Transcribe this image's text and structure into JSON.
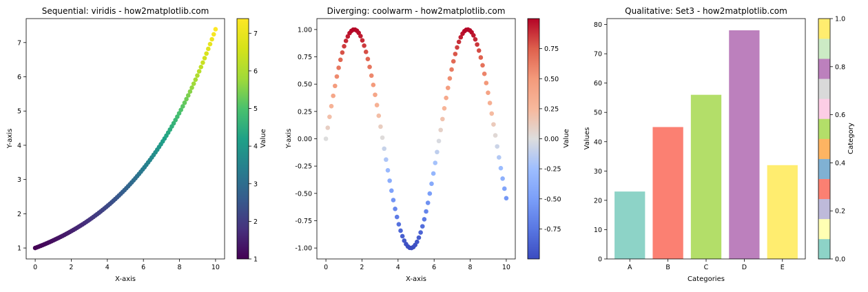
{
  "chart_data": [
    {
      "type": "scatter",
      "title": "Sequential: viridis - how2matplotlib.com",
      "xlabel": "X-axis",
      "ylabel": "Y-axis",
      "colormap": "viridis",
      "function": "exp(x/5)",
      "x_range": [
        0,
        10
      ],
      "n_points": 100,
      "xlim": [
        -0.5,
        10.5
      ],
      "ylim": [
        0.68,
        7.7
      ],
      "xticks": [
        0,
        2,
        4,
        6,
        8,
        10
      ],
      "yticks": [
        1,
        2,
        3,
        4,
        5,
        6,
        7
      ],
      "colorbar": {
        "label": "Value",
        "range": [
          1,
          7.39
        ],
        "ticks": [
          1,
          2,
          3,
          4,
          5,
          6,
          7
        ]
      },
      "grid": false
    },
    {
      "type": "scatter",
      "title": "Diverging: coolwarm - how2matplotlib.com",
      "xlabel": "X-axis",
      "ylabel": "Y-axis",
      "colormap": "coolwarm",
      "function": "sin(x)",
      "x_range": [
        0,
        10
      ],
      "n_points": 100,
      "xlim": [
        -0.5,
        10.5
      ],
      "ylim": [
        -1.1,
        1.1
      ],
      "xticks": [
        0,
        2,
        4,
        6,
        8,
        10
      ],
      "yticks": [
        -1.0,
        -0.75,
        -0.5,
        -0.25,
        0.0,
        0.25,
        0.5,
        0.75,
        1.0
      ],
      "ytick_labels": [
        "-1.00",
        "-0.75",
        "-0.50",
        "-0.25",
        "0.00",
        "0.25",
        "0.50",
        "0.75",
        "1.00"
      ],
      "colorbar": {
        "label": "Value",
        "range": [
          -1,
          1
        ],
        "ticks": [
          -0.75,
          -0.5,
          -0.25,
          0.0,
          0.25,
          0.5,
          0.75
        ],
        "tick_labels": [
          "-0.75",
          "-0.50",
          "-0.25",
          "0.00",
          "0.25",
          "0.50",
          "0.75"
        ]
      },
      "grid": false
    },
    {
      "type": "bar",
      "title": "Qualitative: Set3 - how2matplotlib.com",
      "xlabel": "Categories",
      "ylabel": "Values",
      "colormap": "Set3",
      "categories": [
        "A",
        "B",
        "C",
        "D",
        "E"
      ],
      "values": [
        23,
        45,
        56,
        78,
        32
      ],
      "bar_colors": [
        "#8dd3c7",
        "#fb8072",
        "#b3de69",
        "#bc80bd",
        "#ffed6f"
      ],
      "ylim": [
        0,
        82
      ],
      "yticks": [
        0,
        10,
        20,
        30,
        40,
        50,
        60,
        70,
        80
      ],
      "colorbar": {
        "label": "Category",
        "range": [
          0,
          1
        ],
        "ticks": [
          0.0,
          0.2,
          0.4,
          0.6,
          0.8,
          1.0
        ],
        "tick_labels": [
          "0.0",
          "0.2",
          "0.4",
          "0.6",
          "0.8",
          "1.0"
        ],
        "colors": [
          "#8dd3c7",
          "#ffffb3",
          "#bebada",
          "#fb8072",
          "#80b1d3",
          "#fdb462",
          "#b3de69",
          "#fccde5",
          "#d9d9d9",
          "#bc80bd",
          "#ccebc5",
          "#ffed6f"
        ]
      },
      "grid": false
    }
  ]
}
